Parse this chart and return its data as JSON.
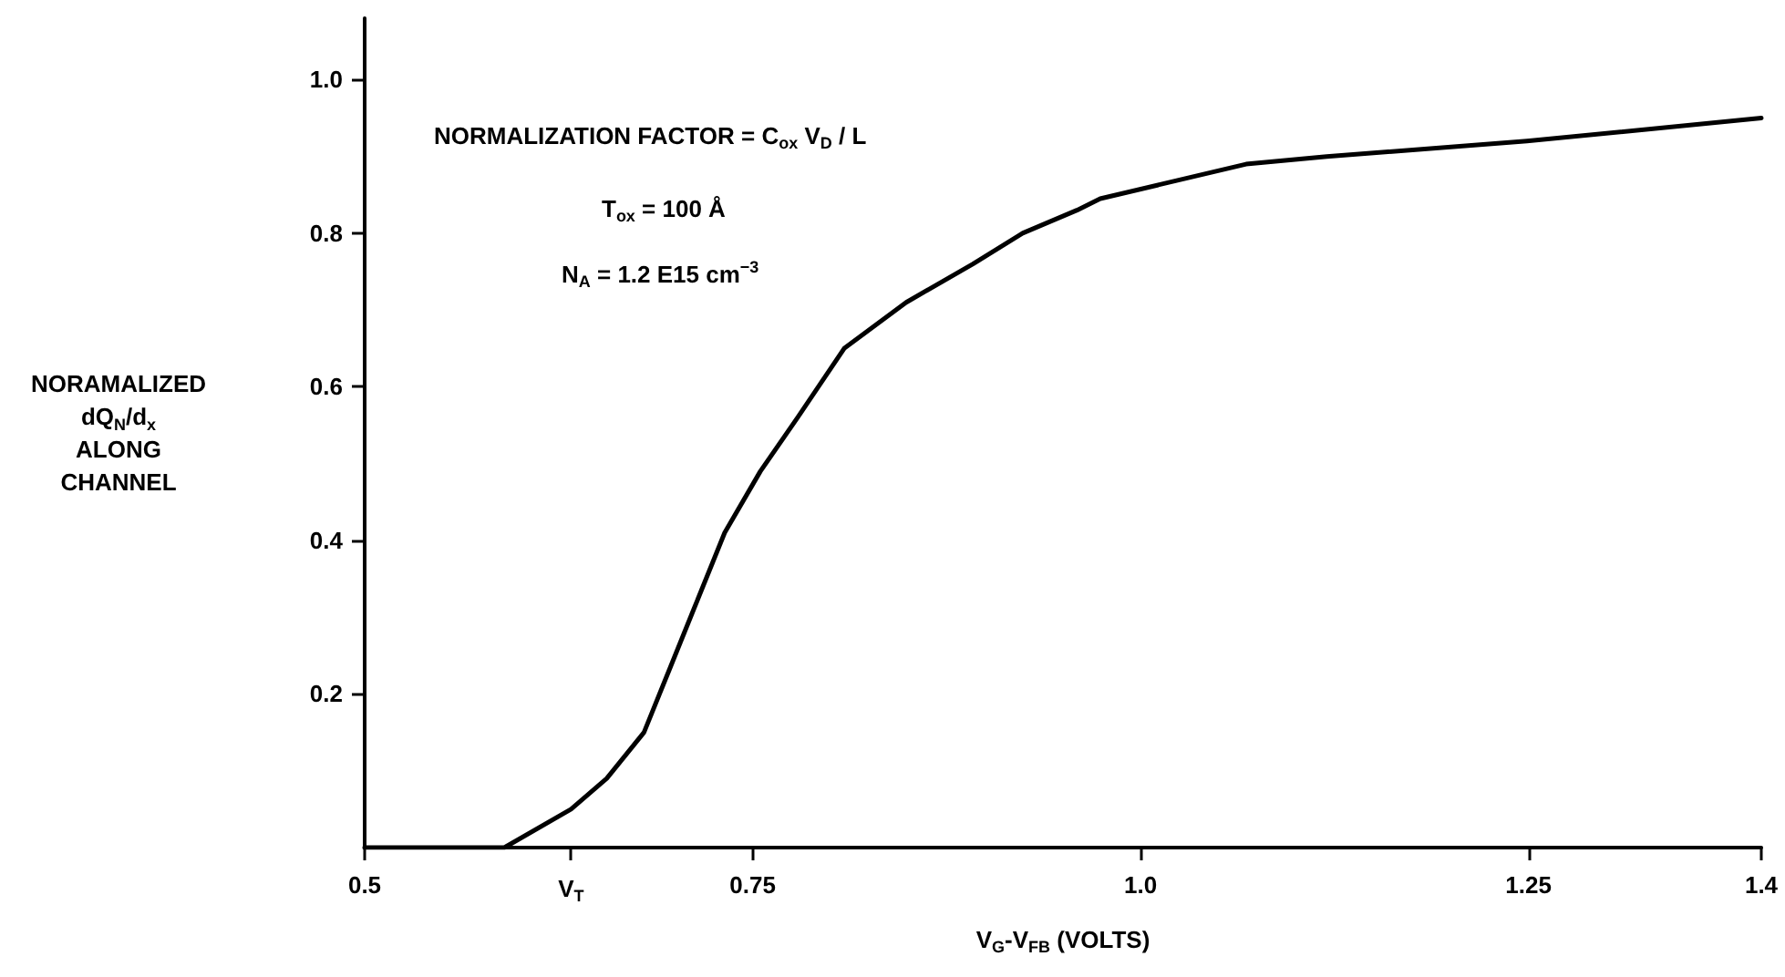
{
  "chart_data": {
    "type": "line",
    "xlabel": "V$_{G}$-V$_{FB}$ (VOLTS)",
    "ylabel": "NORAMALIZED\ndQ$_{N}$/d$_{x}$\nALONG\nCHANNEL",
    "annotations": [
      "NORMALIZATION FACTOR = C$_{ox}$ V$_{D}$ / L",
      "T$_{ox}$ = 100 Å",
      "N$_{A}$ = 1.2 E15 cm$^{−3}$"
    ],
    "x": [
      0.5,
      0.59,
      0.633,
      0.656,
      0.68,
      0.696,
      0.712,
      0.732,
      0.755,
      0.779,
      0.809,
      0.849,
      0.892,
      0.924,
      0.959,
      0.974,
      1.068,
      1.12,
      1.249,
      1.4
    ],
    "series": [
      {
        "color": "#000000",
        "values": [
          0,
          0,
          0.05,
          0.09,
          0.15,
          0.23,
          0.31,
          0.41,
          0.49,
          0.56,
          0.65,
          0.71,
          0.76,
          0.8,
          0.83,
          0.845,
          0.89,
          0.9,
          0.92,
          0.95
        ]
      }
    ],
    "xlim": [
      0.5,
      1.4
    ],
    "ylim": [
      0,
      1.08
    ],
    "xticks": [
      0.5,
      {
        "value": 0.633,
        "label": "V$_{T}$"
      },
      0.75,
      {
        "value": 1,
        "label": "1.0"
      },
      1.25,
      1.4
    ],
    "yticks": [
      0.2,
      0.4,
      0.6,
      0.8,
      {
        "value": 1,
        "label": "1.0"
      }
    ],
    "line_style": "solid"
  }
}
